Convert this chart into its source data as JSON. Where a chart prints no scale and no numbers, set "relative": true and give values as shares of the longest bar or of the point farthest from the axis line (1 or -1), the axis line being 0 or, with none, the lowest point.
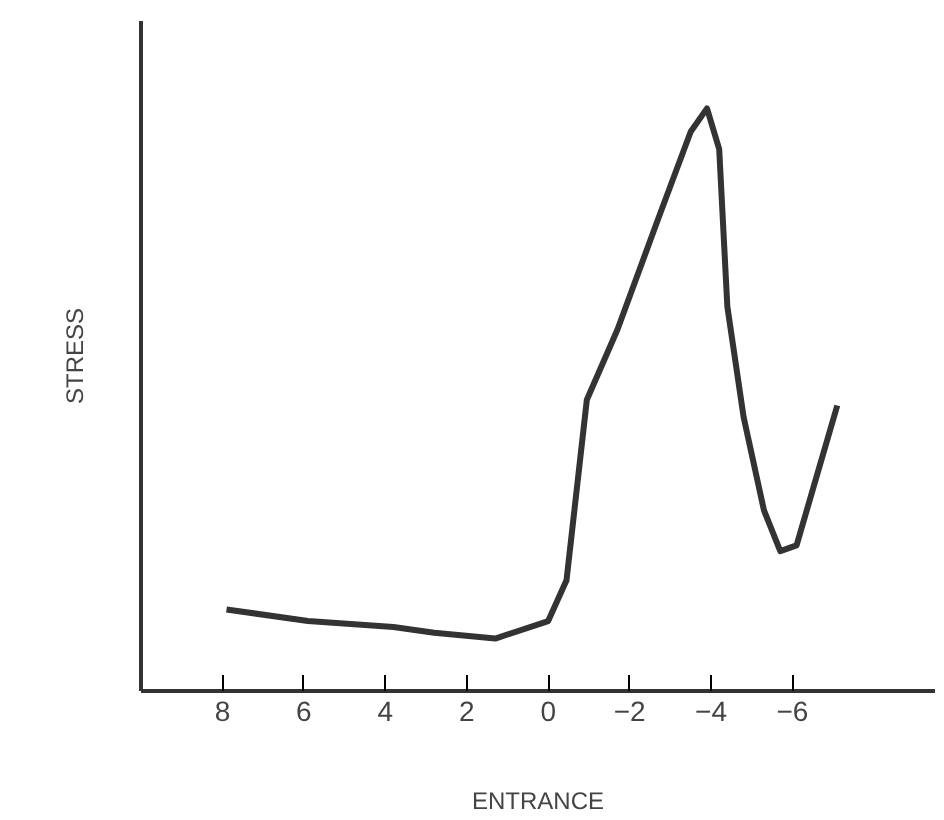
{
  "chart_data": {
    "type": "line",
    "xlabel": "ENTRANCE",
    "ylabel": "STRESS",
    "relative": true,
    "xlim": [
      10,
      -9.5
    ],
    "xticks": [
      8,
      6,
      4,
      2,
      0,
      -2,
      -4,
      -6
    ],
    "grid": false,
    "marker": "none",
    "line_style": "solid",
    "series": [
      {
        "color": "#333333",
        "x": [
          7.9,
          5.9,
          3.8,
          2.8,
          1.3,
          0.0,
          -0.45,
          -0.95,
          -1.7,
          -2.7,
          -3.5,
          -3.9,
          -4.2,
          -4.4,
          -4.8,
          -5.3,
          -5.7,
          -6.1,
          -6.6,
          -7.1
        ],
        "values": [
          0.14,
          0.12,
          0.11,
          0.1,
          0.09,
          0.12,
          0.19,
          0.5,
          0.62,
          0.81,
          0.96,
          1.0,
          0.93,
          0.66,
          0.47,
          0.31,
          0.24,
          0.25,
          0.37,
          0.49
        ]
      }
    ]
  }
}
